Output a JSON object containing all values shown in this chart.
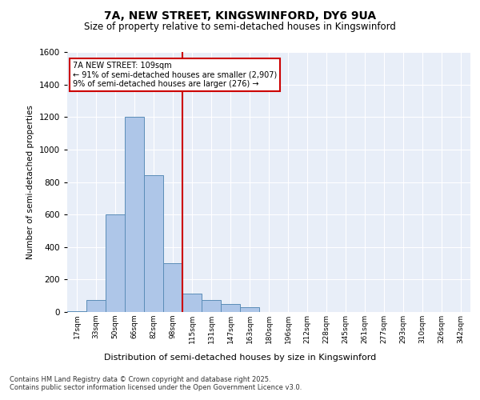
{
  "title_line1": "7A, NEW STREET, KINGSWINFORD, DY6 9UA",
  "title_line2": "Size of property relative to semi-detached houses in Kingswinford",
  "xlabel": "Distribution of semi-detached houses by size in Kingswinford",
  "ylabel": "Number of semi-detached properties",
  "categories": [
    "17sqm",
    "33sqm",
    "50sqm",
    "66sqm",
    "82sqm",
    "98sqm",
    "115sqm",
    "131sqm",
    "147sqm",
    "163sqm",
    "180sqm",
    "196sqm",
    "212sqm",
    "228sqm",
    "245sqm",
    "261sqm",
    "277sqm",
    "293sqm",
    "310sqm",
    "326sqm",
    "342sqm"
  ],
  "values": [
    5,
    75,
    600,
    1200,
    840,
    300,
    115,
    75,
    50,
    30,
    0,
    0,
    0,
    0,
    0,
    0,
    0,
    0,
    0,
    0,
    0
  ],
  "bar_color": "#aec6e8",
  "bar_edge_color": "#5b8db8",
  "vline_x": 6,
  "vline_color": "#cc0000",
  "annotation_text": "7A NEW STREET: 109sqm\n← 91% of semi-detached houses are smaller (2,907)\n9% of semi-detached houses are larger (276) →",
  "annotation_box_color": "#ffffff",
  "annotation_box_edge": "#cc0000",
  "ylim": [
    0,
    1600
  ],
  "yticks": [
    0,
    200,
    400,
    600,
    800,
    1000,
    1200,
    1400,
    1600
  ],
  "background_color": "#e8eef8",
  "footnote": "Contains HM Land Registry data © Crown copyright and database right 2025.\nContains public sector information licensed under the Open Government Licence v3.0.",
  "bar_width": 1.0,
  "fig_width": 6.0,
  "fig_height": 5.0,
  "fig_dpi": 100
}
